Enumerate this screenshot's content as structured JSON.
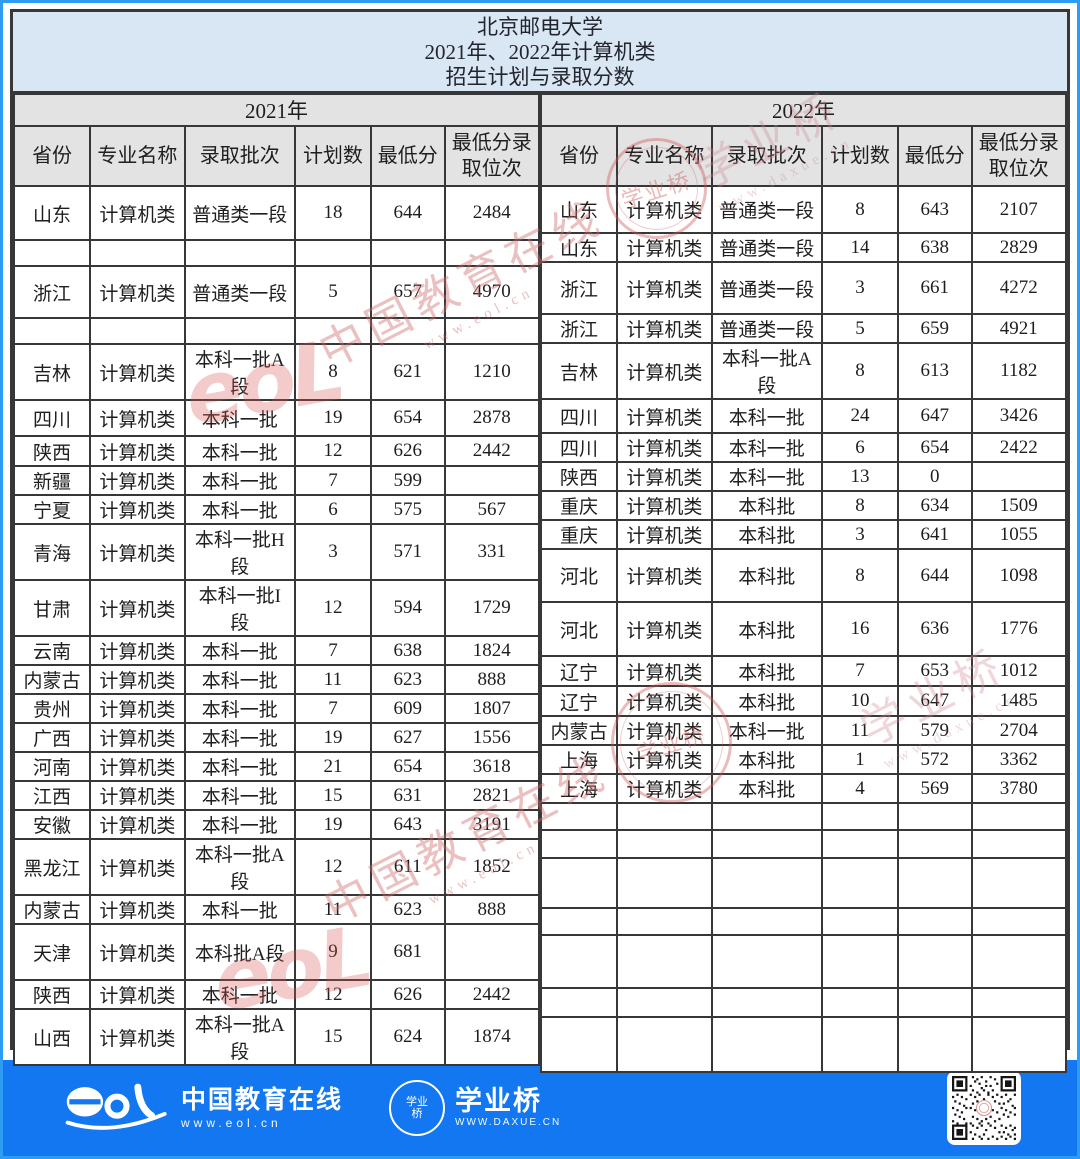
{
  "title": {
    "line1": "北京邮电大学",
    "line2": "2021年、2022年计算机类",
    "line3": "招生计划与录取分数"
  },
  "columns": [
    "省份",
    "专业名称",
    "录取批次",
    "计划数",
    "最低分",
    "最低分录\n取位次"
  ],
  "tables": [
    {
      "year": "2021年",
      "rows": [
        {
          "province": "山东",
          "major": "计算机类",
          "batch": "普通类一段",
          "plan": "18",
          "min_score": "644",
          "min_rank": "2484"
        },
        {
          "province": "",
          "major": "",
          "batch": "",
          "plan": "",
          "min_score": "",
          "min_rank": ""
        },
        {
          "province": "浙江",
          "major": "计算机类",
          "batch": "普通类一段",
          "plan": "5",
          "min_score": "657",
          "min_rank": "4970"
        },
        {
          "province": "",
          "major": "",
          "batch": "",
          "plan": "",
          "min_score": "",
          "min_rank": ""
        },
        {
          "province": "吉林",
          "major": "计算机类",
          "batch": "本科一批A\n段",
          "plan": "8",
          "min_score": "621",
          "min_rank": "1210"
        },
        {
          "province": "四川",
          "major": "计算机类",
          "batch": "本科一批",
          "plan": "19",
          "min_score": "654",
          "min_rank": "2878"
        },
        {
          "province": "陕西",
          "major": "计算机类",
          "batch": "本科一批",
          "plan": "12",
          "min_score": "626",
          "min_rank": "2442"
        },
        {
          "province": "新疆",
          "major": "计算机类",
          "batch": "本科一批",
          "plan": "7",
          "min_score": "599",
          "min_rank": ""
        },
        {
          "province": "宁夏",
          "major": "计算机类",
          "batch": "本科一批",
          "plan": "6",
          "min_score": "575",
          "min_rank": "567"
        },
        {
          "province": "青海",
          "major": "计算机类",
          "batch": "本科一批H\n段",
          "plan": "3",
          "min_score": "571",
          "min_rank": "331"
        },
        {
          "province": "甘肃",
          "major": "计算机类",
          "batch": "本科一批I\n段",
          "plan": "12",
          "min_score": "594",
          "min_rank": "1729"
        },
        {
          "province": "云南",
          "major": "计算机类",
          "batch": "本科一批",
          "plan": "7",
          "min_score": "638",
          "min_rank": "1824"
        },
        {
          "province": "内蒙古",
          "major": "计算机类",
          "batch": "本科一批",
          "plan": "11",
          "min_score": "623",
          "min_rank": "888"
        },
        {
          "province": "贵州",
          "major": "计算机类",
          "batch": "本科一批",
          "plan": "7",
          "min_score": "609",
          "min_rank": "1807"
        },
        {
          "province": "广西",
          "major": "计算机类",
          "batch": "本科一批",
          "plan": "19",
          "min_score": "627",
          "min_rank": "1556"
        },
        {
          "province": "河南",
          "major": "计算机类",
          "batch": "本科一批",
          "plan": "21",
          "min_score": "654",
          "min_rank": "3618"
        },
        {
          "province": "江西",
          "major": "计算机类",
          "batch": "本科一批",
          "plan": "15",
          "min_score": "631",
          "min_rank": "2821"
        },
        {
          "province": "安徽",
          "major": "计算机类",
          "batch": "本科一批",
          "plan": "19",
          "min_score": "643",
          "min_rank": "3191"
        },
        {
          "province": "黑龙江",
          "major": "计算机类",
          "batch": "本科一批A\n段",
          "plan": "12",
          "min_score": "611",
          "min_rank": "1852"
        },
        {
          "province": "内蒙古",
          "major": "计算机类",
          "batch": "本科一批",
          "plan": "11",
          "min_score": "623",
          "min_rank": "888"
        },
        {
          "province": "天津",
          "major": "计算机类",
          "batch": "本科批A段",
          "plan": "9",
          "min_score": "681",
          "min_rank": ""
        },
        {
          "province": "陕西",
          "major": "计算机类",
          "batch": "本科一批",
          "plan": "12",
          "min_score": "626",
          "min_rank": "2442"
        },
        {
          "province": "山西",
          "major": "计算机类",
          "batch": "本科一批A\n段",
          "plan": "15",
          "min_score": "624",
          "min_rank": "1874"
        }
      ]
    },
    {
      "year": "2022年",
      "rows": [
        {
          "province": "山东",
          "major": "计算机类",
          "batch": "普通类一段",
          "plan": "8",
          "min_score": "643",
          "min_rank": "2107"
        },
        {
          "province": "山东",
          "major": "计算机类",
          "batch": "普通类一段",
          "plan": "14",
          "min_score": "638",
          "min_rank": "2829"
        },
        {
          "province": "浙江",
          "major": "计算机类",
          "batch": "普通类一段",
          "plan": "3",
          "min_score": "661",
          "min_rank": "4272"
        },
        {
          "province": "浙江",
          "major": "计算机类",
          "batch": "普通类一段",
          "plan": "5",
          "min_score": "659",
          "min_rank": "4921"
        },
        {
          "province": "吉林",
          "major": "计算机类",
          "batch": "本科一批A\n段",
          "plan": "8",
          "min_score": "613",
          "min_rank": "1182"
        },
        {
          "province": "四川",
          "major": "计算机类",
          "batch": "本科一批",
          "plan": "24",
          "min_score": "647",
          "min_rank": "3426"
        },
        {
          "province": "四川",
          "major": "计算机类",
          "batch": "本科一批",
          "plan": "6",
          "min_score": "654",
          "min_rank": "2422"
        },
        {
          "province": "陕西",
          "major": "计算机类",
          "batch": "本科一批",
          "plan": "13",
          "min_score": "0",
          "min_rank": ""
        },
        {
          "province": "重庆",
          "major": "计算机类",
          "batch": "本科批",
          "plan": "8",
          "min_score": "634",
          "min_rank": "1509"
        },
        {
          "province": "重庆",
          "major": "计算机类",
          "batch": "本科批",
          "plan": "3",
          "min_score": "641",
          "min_rank": "1055"
        },
        {
          "province": "河北",
          "major": "计算机类",
          "batch": "本科批",
          "plan": "8",
          "min_score": "644",
          "min_rank": "1098"
        },
        {
          "province": "河北",
          "major": "计算机类",
          "batch": "本科批",
          "plan": "16",
          "min_score": "636",
          "min_rank": "1776"
        },
        {
          "province": "辽宁",
          "major": "计算机类",
          "batch": "本科批",
          "plan": "7",
          "min_score": "653",
          "min_rank": "1012"
        },
        {
          "province": "辽宁",
          "major": "计算机类",
          "batch": "本科批",
          "plan": "10",
          "min_score": "647",
          "min_rank": "1485"
        },
        {
          "province": "内蒙古",
          "major": "计算机类",
          "batch": "本科一批",
          "plan": "11",
          "min_score": "579",
          "min_rank": "2704"
        },
        {
          "province": "上海",
          "major": "计算机类",
          "batch": "本科批",
          "plan": "1",
          "min_score": "572",
          "min_rank": "3362"
        },
        {
          "province": "上海",
          "major": "计算机类",
          "batch": "本科批",
          "plan": "4",
          "min_score": "569",
          "min_rank": "3780"
        },
        {
          "province": "",
          "major": "",
          "batch": "",
          "plan": "",
          "min_score": "",
          "min_rank": ""
        },
        {
          "province": "",
          "major": "",
          "batch": "",
          "plan": "",
          "min_score": "",
          "min_rank": ""
        },
        {
          "province": "",
          "major": "",
          "batch": "",
          "plan": "",
          "min_score": "",
          "min_rank": ""
        },
        {
          "province": "",
          "major": "",
          "batch": "",
          "plan": "",
          "min_score": "",
          "min_rank": ""
        },
        {
          "province": "",
          "major": "",
          "batch": "",
          "plan": "",
          "min_score": "",
          "min_rank": ""
        },
        {
          "province": "",
          "major": "",
          "batch": "",
          "plan": "",
          "min_score": "",
          "min_rank": ""
        },
        {
          "province": "",
          "major": "",
          "batch": "",
          "plan": "",
          "min_score": "",
          "min_rank": ""
        }
      ]
    }
  ],
  "watermarks": {
    "brand": "中国教育在线",
    "brand_url": "www.eol.cn",
    "bridge": "学业桥",
    "bridge_url": "www.daxue.cn",
    "eol": "eoL",
    "seal_label": "学业桥"
  },
  "footer": {
    "eol": "eol",
    "brand1": "中国教育在线",
    "brand1_url": "www.eol.cn",
    "brand2": "学业桥",
    "brand2_url": "WWW.DAXUE.CN"
  },
  "colors": {
    "footer_blue": "#1277f0",
    "page_border_blue": "#2d9cf2",
    "title_bg": "#d9e6f3",
    "band_bg": "#e3e3e3",
    "grid_line": "#373737",
    "watermark_red": "#cd6969"
  }
}
